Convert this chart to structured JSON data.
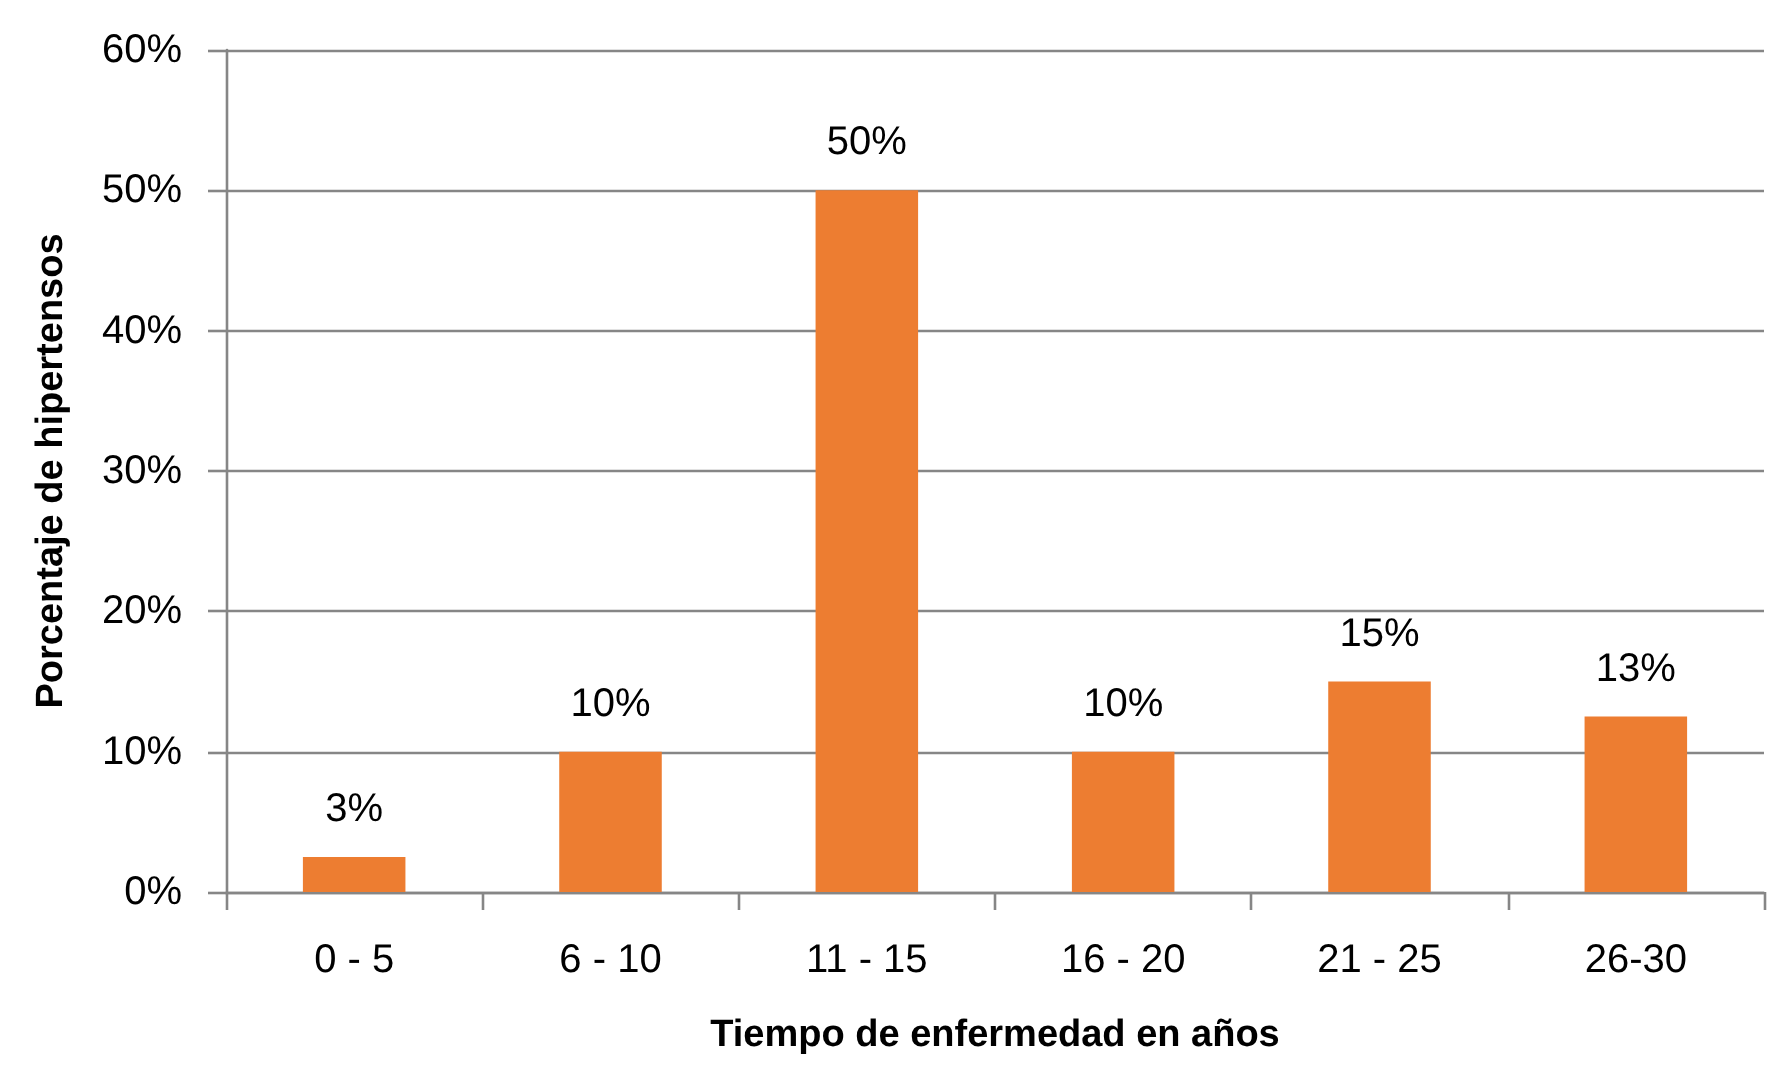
{
  "chart_data": {
    "type": "bar",
    "xlabel": "Tiempo de enfermedad en años",
    "ylabel": "Porcentaje de hipertensos",
    "categories": [
      "0 - 5",
      "6 - 10",
      "11 - 15",
      "16 - 20",
      "21 - 25",
      "26-30"
    ],
    "values": [
      2.5,
      10,
      50,
      10,
      15,
      12.5
    ],
    "color": "#ed7d31",
    "value_labels": [
      "3%",
      "10%",
      "50%",
      "10%",
      "15%",
      "13%"
    ],
    "ylim": [
      0,
      60
    ],
    "yticks": [
      {
        "value": 0,
        "label": "0%"
      },
      {
        "value": 10,
        "label": "10%"
      },
      {
        "value": 20,
        "label": "20%"
      },
      {
        "value": 30,
        "label": "30%"
      },
      {
        "value": 40,
        "label": "40%"
      },
      {
        "value": 50,
        "label": "50%"
      },
      {
        "value": 60,
        "label": "60%"
      }
    ],
    "grid": "y"
  }
}
